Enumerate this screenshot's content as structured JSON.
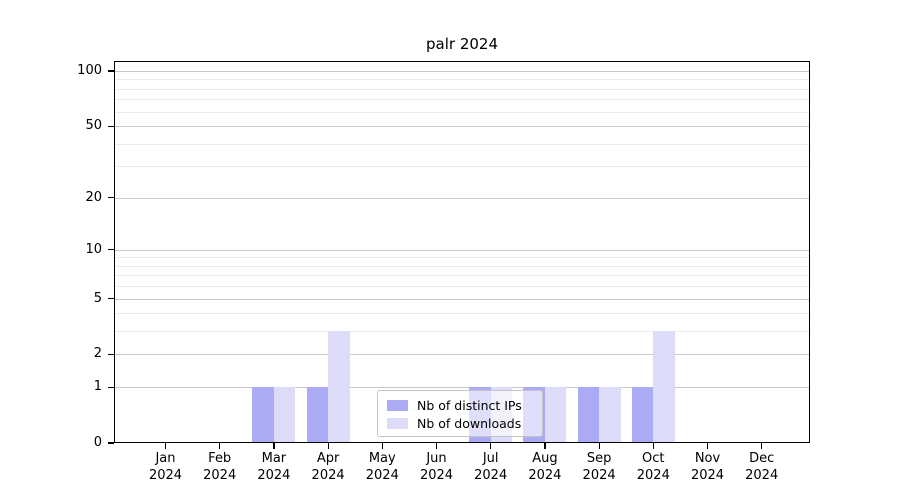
{
  "title": "palr 2024",
  "chart_data": {
    "type": "bar",
    "title": "palr 2024",
    "categories": [
      "Jan",
      "Feb",
      "Mar",
      "Apr",
      "May",
      "Jun",
      "Jul",
      "Aug",
      "Sep",
      "Oct",
      "Nov",
      "Dec"
    ],
    "year_label": "2024",
    "series": [
      {
        "name": "Nb of distinct IPs",
        "color": "#aaaaf5",
        "values": [
          0,
          0,
          1,
          1,
          0,
          0,
          1,
          1,
          1,
          1,
          0,
          0
        ]
      },
      {
        "name": "Nb of downloads",
        "color": "#dcdcf9",
        "values": [
          0,
          0,
          1,
          3,
          0,
          0,
          1,
          1,
          1,
          3,
          0,
          0
        ]
      }
    ],
    "yticks": [
      0,
      1,
      2,
      5,
      10,
      20,
      50,
      100
    ],
    "minor_yticks": [
      3,
      4,
      6,
      7,
      8,
      9,
      30,
      40,
      60,
      70,
      80,
      90
    ],
    "scale": "log10(1+v)",
    "ylim": [
      0,
      114
    ],
    "grid": "horizontal-only",
    "legend_position": "lower-center-inside",
    "colors": {
      "bar_distinct_ips": "#aaaaf5",
      "bar_downloads": "#dcdcf9",
      "major_grid": "#c9c9c9",
      "minor_grid": "#ececec",
      "spine": "#000000",
      "background": "#ffffff"
    }
  }
}
